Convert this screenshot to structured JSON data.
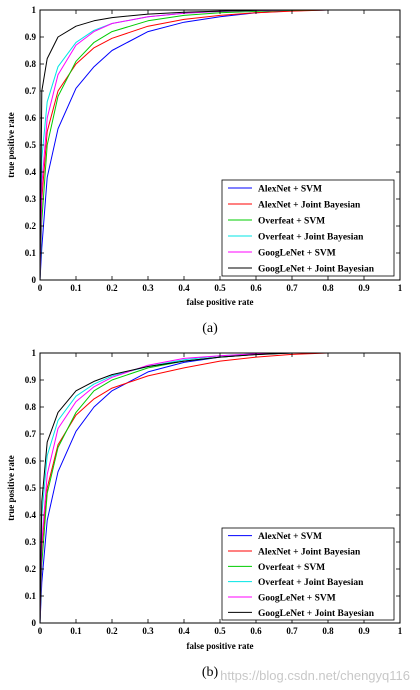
{
  "chart_data": [
    {
      "type": "line",
      "caption": "(a)",
      "xlabel": "false positive rate",
      "ylabel": "true positive rate",
      "xlim": [
        0,
        1
      ],
      "ylim": [
        0,
        1
      ],
      "xticks": [
        "0",
        "0.1",
        "0.2",
        "0.3",
        "0.4",
        "0.5",
        "0.6",
        "0.7",
        "0.8",
        "0.9",
        "1"
      ],
      "yticks": [
        "0",
        "0.1",
        "0.2",
        "0.3",
        "0.4",
        "0.5",
        "0.6",
        "0.7",
        "0.8",
        "0.9",
        "1"
      ],
      "grid": false,
      "legend_position": "bottom-right",
      "series": [
        {
          "name": "AlexNet + SVM",
          "color": "#0000ff",
          "x": [
            0,
            0.005,
            0.02,
            0.05,
            0.1,
            0.15,
            0.2,
            0.3,
            0.4,
            0.5,
            0.6,
            0.7,
            0.8,
            0.9,
            1
          ],
          "y": [
            0,
            0.12,
            0.38,
            0.56,
            0.71,
            0.79,
            0.85,
            0.92,
            0.955,
            0.975,
            0.99,
            0.997,
            1,
            1,
            1
          ]
        },
        {
          "name": "AlexNet + Joint Bayesian",
          "color": "#ff0000",
          "x": [
            0,
            0.005,
            0.02,
            0.05,
            0.1,
            0.15,
            0.2,
            0.3,
            0.4,
            0.5,
            0.6,
            0.7,
            0.8,
            0.9,
            1
          ],
          "y": [
            0,
            0.3,
            0.55,
            0.7,
            0.8,
            0.86,
            0.895,
            0.94,
            0.965,
            0.98,
            0.99,
            0.996,
            1,
            1,
            1
          ]
        },
        {
          "name": "Overfeat + SVM",
          "color": "#00cc00",
          "x": [
            0,
            0.005,
            0.02,
            0.05,
            0.1,
            0.15,
            0.2,
            0.3,
            0.4,
            0.5,
            0.6,
            0.7,
            0.8,
            0.9,
            1
          ],
          "y": [
            0,
            0.22,
            0.5,
            0.68,
            0.81,
            0.88,
            0.92,
            0.96,
            0.98,
            0.99,
            0.995,
            0.999,
            1,
            1,
            1
          ]
        },
        {
          "name": "Overfeat + Joint Bayesian",
          "color": "#00e5e5",
          "x": [
            0,
            0.005,
            0.02,
            0.05,
            0.1,
            0.15,
            0.2,
            0.3,
            0.4,
            0.5,
            0.6,
            0.7,
            0.8,
            0.9,
            1
          ],
          "y": [
            0,
            0.45,
            0.66,
            0.79,
            0.88,
            0.925,
            0.95,
            0.975,
            0.988,
            0.995,
            0.998,
            1,
            1,
            1,
            1
          ]
        },
        {
          "name": "GoogLeNet + SVM",
          "color": "#ff00ff",
          "x": [
            0,
            0.005,
            0.02,
            0.05,
            0.1,
            0.15,
            0.2,
            0.3,
            0.4,
            0.5,
            0.6,
            0.7,
            0.8,
            0.9,
            1
          ],
          "y": [
            0,
            0.35,
            0.6,
            0.76,
            0.87,
            0.92,
            0.95,
            0.975,
            0.988,
            0.995,
            0.998,
            1,
            1,
            1,
            1
          ]
        },
        {
          "name": "GoogLeNet + Joint Bayesian",
          "color": "#000000",
          "x": [
            0,
            0.005,
            0.02,
            0.05,
            0.1,
            0.15,
            0.2,
            0.3,
            0.4,
            0.5,
            0.6,
            0.7,
            0.8,
            0.9,
            1
          ],
          "y": [
            0,
            0.7,
            0.82,
            0.9,
            0.94,
            0.96,
            0.972,
            0.985,
            0.992,
            0.996,
            0.999,
            1,
            1,
            1,
            1
          ]
        }
      ]
    },
    {
      "type": "line",
      "caption": "(b)",
      "xlabel": "false positive rate",
      "ylabel": "true positive rate",
      "xlim": [
        0,
        1
      ],
      "ylim": [
        0,
        1
      ],
      "xticks": [
        "0",
        "0.1",
        "0.2",
        "0.3",
        "0.4",
        "0.5",
        "0.6",
        "0.7",
        "0.8",
        "0.9",
        "1"
      ],
      "yticks": [
        "0",
        "0.1",
        "0.2",
        "0.3",
        "0.4",
        "0.5",
        "0.6",
        "0.7",
        "0.8",
        "0.9",
        "1"
      ],
      "grid": false,
      "legend_position": "bottom-right",
      "series": [
        {
          "name": "AlexNet + SVM",
          "color": "#0000ff",
          "x": [
            0,
            0.005,
            0.02,
            0.05,
            0.1,
            0.15,
            0.2,
            0.3,
            0.4,
            0.5,
            0.6,
            0.7,
            0.8,
            0.9,
            1
          ],
          "y": [
            0,
            0.15,
            0.38,
            0.56,
            0.71,
            0.8,
            0.86,
            0.93,
            0.965,
            0.985,
            0.995,
            1,
            1,
            1,
            1
          ]
        },
        {
          "name": "AlexNet + Joint Bayesian",
          "color": "#ff0000",
          "x": [
            0,
            0.005,
            0.02,
            0.05,
            0.1,
            0.15,
            0.2,
            0.3,
            0.4,
            0.5,
            0.6,
            0.7,
            0.8,
            0.9,
            1
          ],
          "y": [
            0,
            0.28,
            0.5,
            0.66,
            0.77,
            0.83,
            0.87,
            0.915,
            0.945,
            0.97,
            0.985,
            0.995,
            1,
            1,
            1
          ]
        },
        {
          "name": "Overfeat + SVM",
          "color": "#00cc00",
          "x": [
            0,
            0.005,
            0.02,
            0.05,
            0.1,
            0.15,
            0.2,
            0.3,
            0.4,
            0.5,
            0.6,
            0.7,
            0.8,
            0.9,
            1
          ],
          "y": [
            0,
            0.22,
            0.48,
            0.65,
            0.78,
            0.86,
            0.9,
            0.945,
            0.97,
            0.985,
            0.995,
            1,
            1,
            1,
            1
          ]
        },
        {
          "name": "Overfeat + Joint Bayesian",
          "color": "#00e5e5",
          "x": [
            0,
            0.005,
            0.02,
            0.05,
            0.1,
            0.15,
            0.2,
            0.3,
            0.4,
            0.5,
            0.6,
            0.7,
            0.8,
            0.9,
            1
          ],
          "y": [
            0,
            0.4,
            0.62,
            0.75,
            0.84,
            0.885,
            0.915,
            0.95,
            0.975,
            0.99,
            0.997,
            1,
            1,
            1,
            1
          ]
        },
        {
          "name": "GoogLeNet + SVM",
          "color": "#ff00ff",
          "x": [
            0,
            0.005,
            0.02,
            0.05,
            0.1,
            0.15,
            0.2,
            0.3,
            0.4,
            0.5,
            0.6,
            0.7,
            0.8,
            0.9,
            1
          ],
          "y": [
            0,
            0.3,
            0.55,
            0.72,
            0.82,
            0.875,
            0.91,
            0.955,
            0.98,
            0.99,
            0.997,
            1,
            1,
            1,
            1
          ]
        },
        {
          "name": "GoogLeNet + Joint Bayesian",
          "color": "#000000",
          "x": [
            0,
            0.005,
            0.02,
            0.05,
            0.1,
            0.15,
            0.2,
            0.3,
            0.4,
            0.5,
            0.6,
            0.7,
            0.8,
            0.9,
            1
          ],
          "y": [
            0,
            0.45,
            0.67,
            0.78,
            0.86,
            0.895,
            0.92,
            0.95,
            0.97,
            0.985,
            0.994,
            1,
            1,
            1,
            1
          ]
        }
      ]
    }
  ],
  "watermark": "https://blog.csdn.net/chengyq116"
}
